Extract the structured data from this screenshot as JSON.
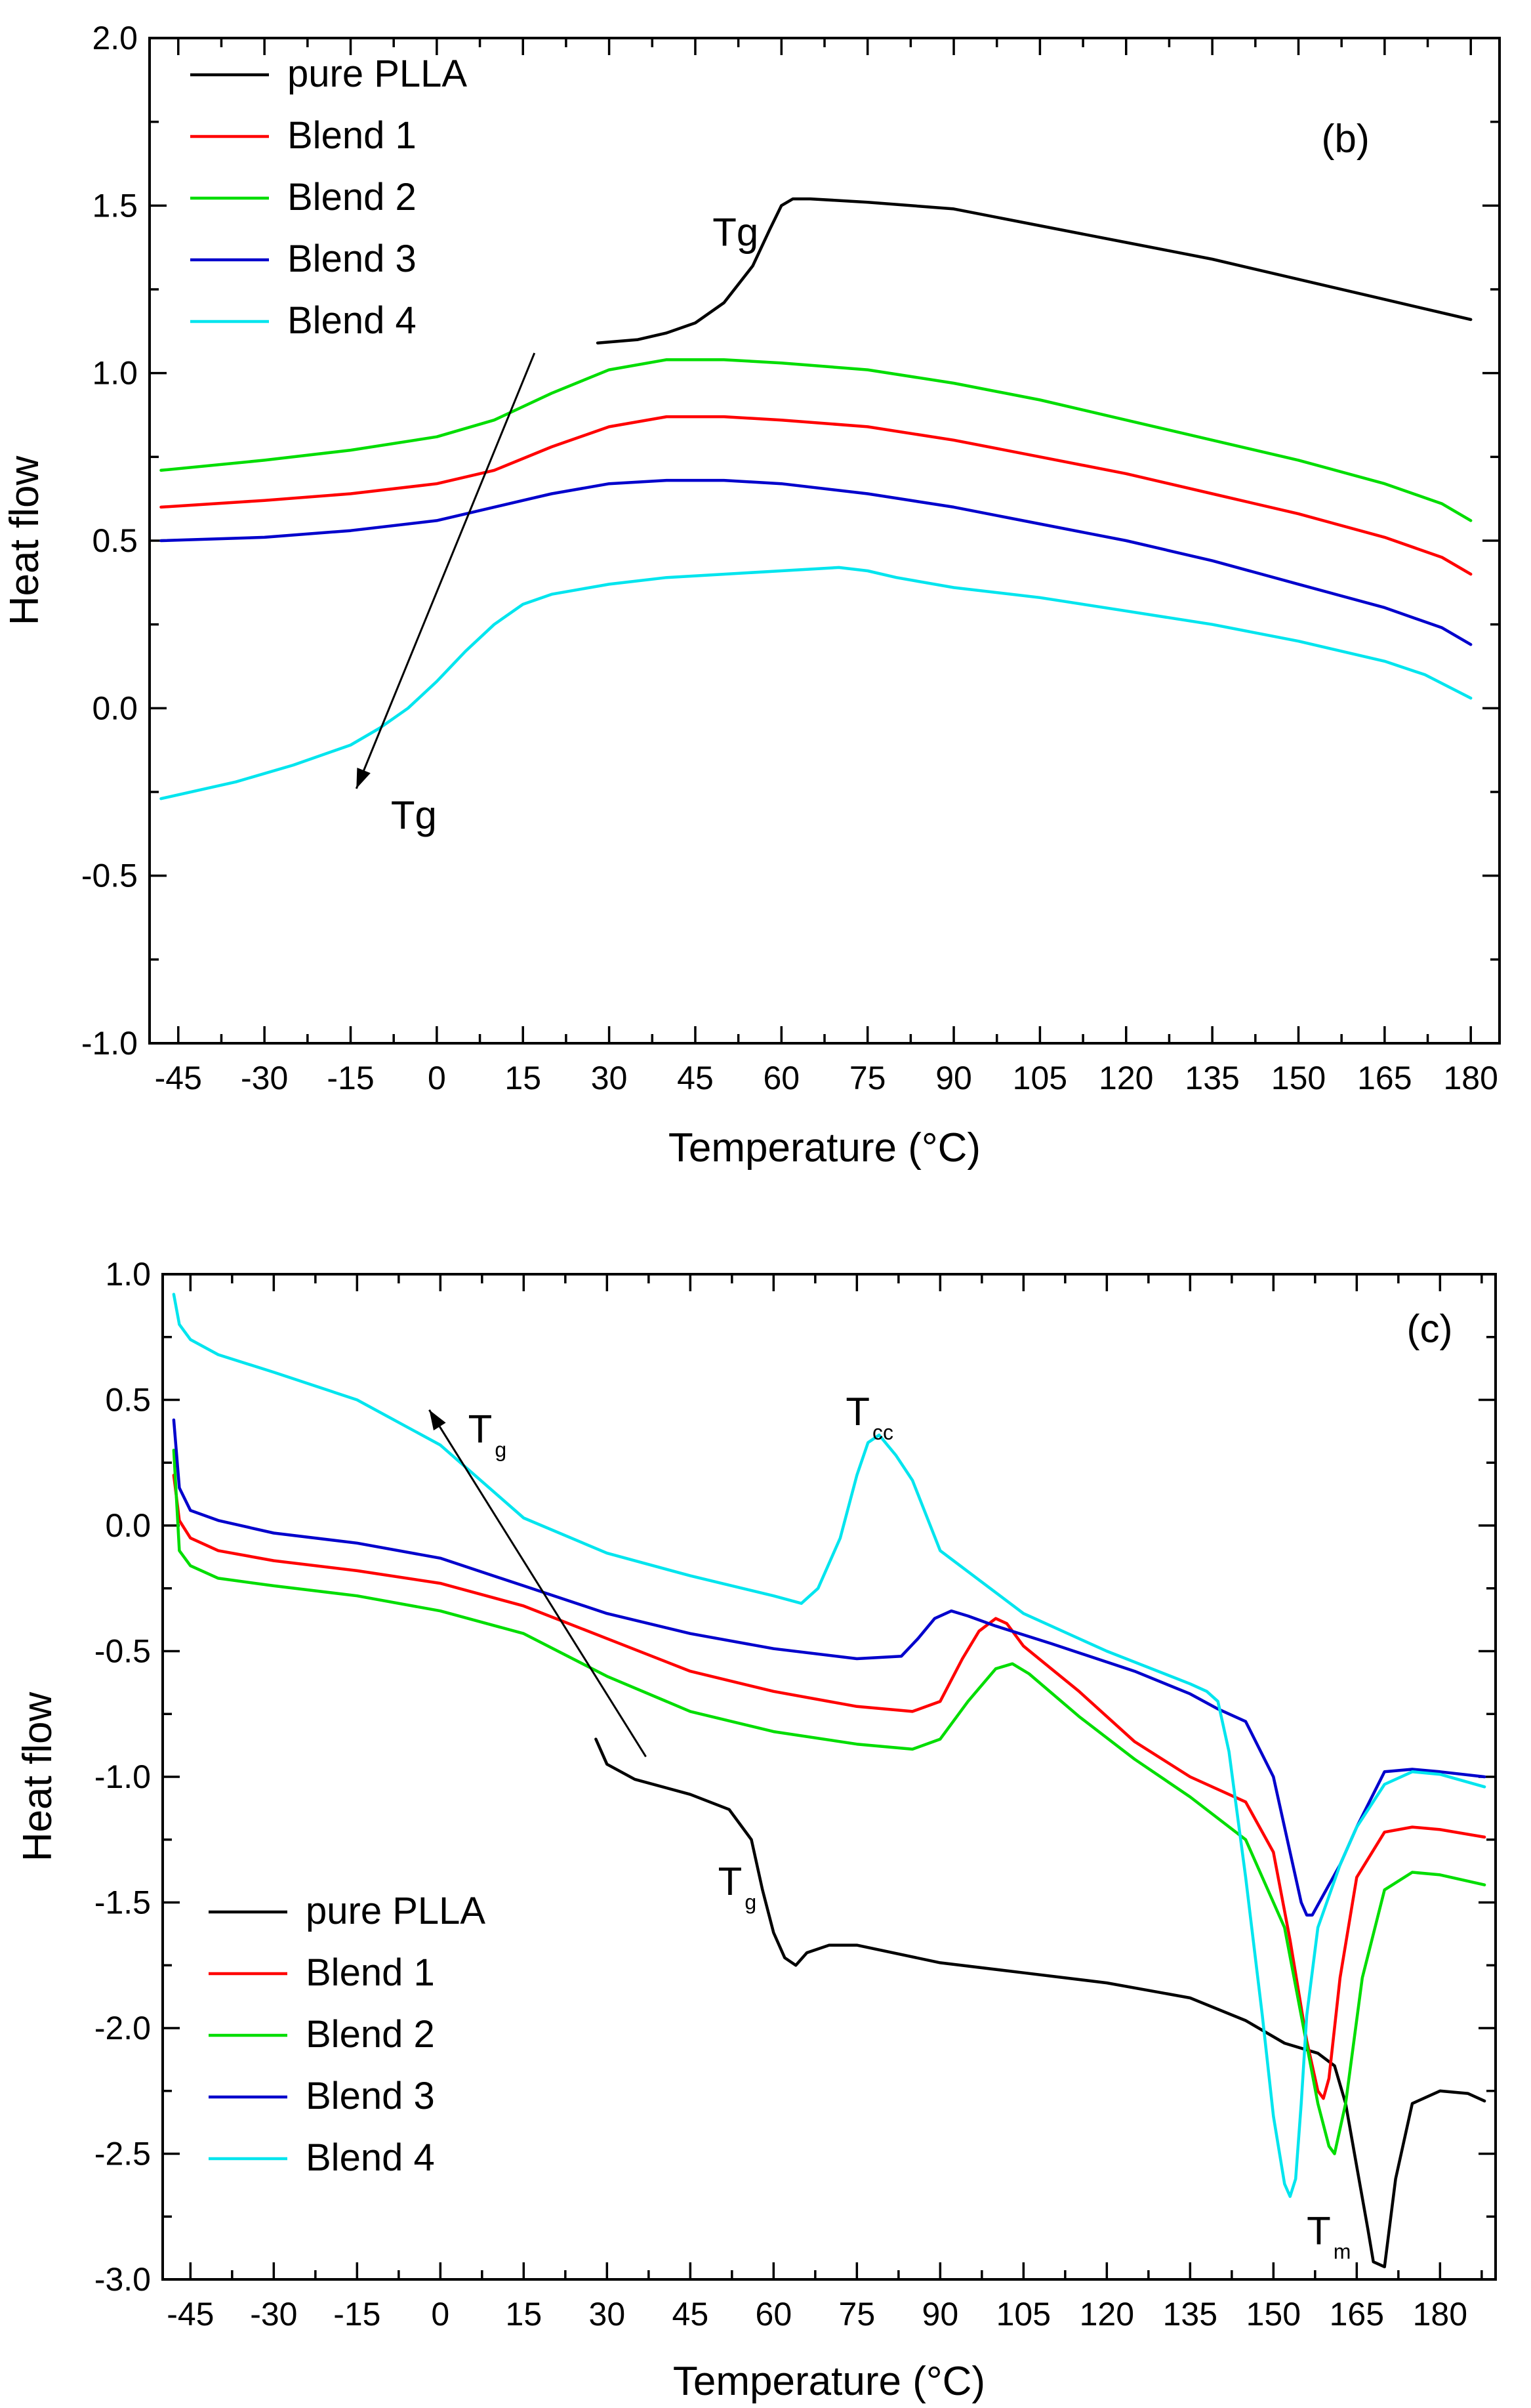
{
  "chart_data": [
    {
      "type": "line",
      "panel": "(b)",
      "xlabel": "Temperature (°C)",
      "ylabel": "Heat flow",
      "xlim": [
        -50,
        185
      ],
      "ylim": [
        -1.0,
        2.0
      ],
      "xticks": [
        -45,
        -30,
        -15,
        0,
        15,
        30,
        45,
        60,
        75,
        90,
        105,
        120,
        135,
        150,
        165,
        180
      ],
      "yticks": [
        -1.0,
        -0.5,
        0.0,
        0.5,
        1.0,
        1.5,
        2.0
      ],
      "ytick_labels": [
        "-1.0",
        "-0.5",
        "0.0",
        "0.5",
        "1.0",
        "1.5",
        "2.0"
      ],
      "legend_position": "top-left",
      "series": [
        {
          "name": "pure PLLA",
          "color": "#000000",
          "x": [
            28,
            35,
            40,
            45,
            50,
            55,
            58,
            60,
            62,
            65,
            75,
            90,
            105,
            120,
            135,
            150,
            165,
            180
          ],
          "y": [
            1.09,
            1.1,
            1.12,
            1.15,
            1.21,
            1.32,
            1.43,
            1.5,
            1.52,
            1.52,
            1.51,
            1.49,
            1.44,
            1.39,
            1.34,
            1.28,
            1.22,
            1.16
          ]
        },
        {
          "name": "Blend 1",
          "color": "#ff0000",
          "x": [
            -48,
            -30,
            -15,
            0,
            10,
            20,
            30,
            40,
            50,
            60,
            75,
            90,
            105,
            120,
            135,
            150,
            165,
            175,
            180
          ],
          "y": [
            0.6,
            0.62,
            0.64,
            0.67,
            0.71,
            0.78,
            0.84,
            0.87,
            0.87,
            0.86,
            0.84,
            0.8,
            0.75,
            0.7,
            0.64,
            0.58,
            0.51,
            0.45,
            0.4
          ]
        },
        {
          "name": "Blend 2",
          "color": "#00dd00",
          "x": [
            -48,
            -30,
            -15,
            0,
            10,
            20,
            30,
            40,
            50,
            60,
            75,
            90,
            105,
            120,
            135,
            150,
            165,
            175,
            180
          ],
          "y": [
            0.71,
            0.74,
            0.77,
            0.81,
            0.86,
            0.94,
            1.01,
            1.04,
            1.04,
            1.03,
            1.01,
            0.97,
            0.92,
            0.86,
            0.8,
            0.74,
            0.67,
            0.61,
            0.56
          ]
        },
        {
          "name": "Blend 3",
          "color": "#0000cc",
          "x": [
            -48,
            -30,
            -15,
            0,
            10,
            20,
            30,
            40,
            50,
            60,
            75,
            90,
            105,
            120,
            135,
            150,
            165,
            175,
            180
          ],
          "y": [
            0.5,
            0.51,
            0.53,
            0.56,
            0.6,
            0.64,
            0.67,
            0.68,
            0.68,
            0.67,
            0.64,
            0.6,
            0.55,
            0.5,
            0.44,
            0.37,
            0.3,
            0.24,
            0.19
          ]
        },
        {
          "name": "Blend 4",
          "color": "#00e5ee",
          "x": [
            -48,
            -35,
            -25,
            -15,
            -10,
            -5,
            0,
            5,
            10,
            15,
            20,
            30,
            40,
            50,
            60,
            70,
            75,
            80,
            90,
            105,
            120,
            135,
            150,
            165,
            172,
            180
          ],
          "y": [
            -0.27,
            -0.22,
            -0.17,
            -0.11,
            -0.06,
            0.0,
            0.08,
            0.17,
            0.25,
            0.31,
            0.34,
            0.37,
            0.39,
            0.4,
            0.41,
            0.42,
            0.41,
            0.39,
            0.36,
            0.33,
            0.29,
            0.25,
            0.2,
            0.14,
            0.1,
            0.03
          ]
        }
      ],
      "annotations": [
        {
          "label": "(b)",
          "x": 154,
          "y": 1.66
        },
        {
          "label": "Tg",
          "x": 48,
          "y": 1.38,
          "sub": ""
        },
        {
          "label": "Tg",
          "x": -8,
          "y": -0.36,
          "sub": ""
        }
      ],
      "arrow": {
        "from": [
          17,
          1.06
        ],
        "to": [
          -14,
          -0.24
        ]
      }
    },
    {
      "type": "line",
      "panel": "(c)",
      "xlabel": "Temperature (°C)",
      "ylabel": "Heat flow",
      "xlim": [
        -50,
        190
      ],
      "ylim": [
        -3.0,
        1.0
      ],
      "xticks": [
        -45,
        -30,
        -15,
        0,
        15,
        30,
        45,
        60,
        75,
        90,
        105,
        120,
        135,
        150,
        165,
        180
      ],
      "yticks": [
        -3.0,
        -2.5,
        -2.0,
        -1.5,
        -1.0,
        -0.5,
        0.0,
        0.5,
        1.0
      ],
      "ytick_labels": [
        "-3.0",
        "-2.5",
        "-2.0",
        "-1.5",
        "-1.0",
        "-0.5",
        "0.0",
        "0.5",
        "1.0"
      ],
      "legend_position": "bottom-left",
      "series": [
        {
          "name": "pure PLLA",
          "color": "#000000",
          "x": [
            28,
            30,
            35,
            45,
            52,
            56,
            58,
            60,
            62,
            64,
            66,
            70,
            75,
            90,
            105,
            120,
            135,
            145,
            152,
            158,
            161,
            163,
            165,
            167,
            168,
            170,
            172,
            175,
            180,
            185,
            188
          ],
          "y": [
            -0.85,
            -0.95,
            -1.01,
            -1.07,
            -1.13,
            -1.25,
            -1.45,
            -1.62,
            -1.72,
            -1.75,
            -1.7,
            -1.67,
            -1.67,
            -1.74,
            -1.78,
            -1.82,
            -1.88,
            -1.97,
            -2.06,
            -2.1,
            -2.15,
            -2.3,
            -2.55,
            -2.8,
            -2.93,
            -2.95,
            -2.6,
            -2.3,
            -2.25,
            -2.26,
            -2.29
          ]
        },
        {
          "name": "Blend 1",
          "color": "#ff0000",
          "x": [
            -48,
            -47,
            -45,
            -40,
            -30,
            -15,
            0,
            15,
            30,
            45,
            60,
            75,
            85,
            90,
            94,
            97,
            100,
            102,
            105,
            115,
            125,
            135,
            145,
            150,
            153,
            156,
            158,
            159,
            160,
            162,
            165,
            170,
            175,
            180,
            188
          ],
          "y": [
            0.2,
            0.02,
            -0.05,
            -0.1,
            -0.14,
            -0.18,
            -0.23,
            -0.32,
            -0.45,
            -0.58,
            -0.66,
            -0.72,
            -0.74,
            -0.7,
            -0.53,
            -0.42,
            -0.37,
            -0.39,
            -0.48,
            -0.66,
            -0.86,
            -1.0,
            -1.1,
            -1.3,
            -1.65,
            -2.05,
            -2.25,
            -2.28,
            -2.2,
            -1.8,
            -1.4,
            -1.22,
            -1.2,
            -1.21,
            -1.24
          ]
        },
        {
          "name": "Blend 2",
          "color": "#00dd00",
          "x": [
            -48,
            -47,
            -45,
            -40,
            -30,
            -15,
            0,
            15,
            30,
            45,
            60,
            75,
            85,
            90,
            95,
            100,
            103,
            106,
            115,
            125,
            135,
            145,
            152,
            155,
            158,
            160,
            161,
            163,
            166,
            170,
            175,
            180,
            188
          ],
          "y": [
            0.3,
            -0.1,
            -0.16,
            -0.21,
            -0.24,
            -0.28,
            -0.34,
            -0.43,
            -0.6,
            -0.74,
            -0.82,
            -0.87,
            -0.89,
            -0.85,
            -0.7,
            -0.57,
            -0.55,
            -0.59,
            -0.76,
            -0.93,
            -1.08,
            -1.25,
            -1.6,
            -1.95,
            -2.3,
            -2.47,
            -2.5,
            -2.3,
            -1.8,
            -1.45,
            -1.38,
            -1.39,
            -1.43
          ]
        },
        {
          "name": "Blend 3",
          "color": "#0000cc",
          "x": [
            -48,
            -47,
            -45,
            -40,
            -30,
            -15,
            0,
            15,
            30,
            45,
            60,
            75,
            83,
            86,
            89,
            92,
            95,
            100,
            110,
            125,
            135,
            140,
            145,
            150,
            153,
            155,
            156,
            157,
            159,
            162,
            165,
            170,
            175,
            180,
            188
          ],
          "y": [
            0.42,
            0.15,
            0.06,
            0.02,
            -0.03,
            -0.07,
            -0.13,
            -0.24,
            -0.35,
            -0.43,
            -0.49,
            -0.53,
            -0.52,
            -0.45,
            -0.37,
            -0.34,
            -0.36,
            -0.4,
            -0.47,
            -0.58,
            -0.67,
            -0.73,
            -0.78,
            -1.0,
            -1.3,
            -1.5,
            -1.55,
            -1.55,
            -1.47,
            -1.35,
            -1.2,
            -0.98,
            -0.97,
            -0.98,
            -1.0
          ]
        },
        {
          "name": "Blend 4",
          "color": "#00e5ee",
          "x": [
            -48,
            -47,
            -45,
            -40,
            -30,
            -15,
            0,
            15,
            30,
            45,
            60,
            65,
            68,
            72,
            75,
            77,
            79,
            82,
            85,
            90,
            105,
            120,
            135,
            138,
            140,
            142,
            145,
            148,
            150,
            152,
            153,
            154,
            155,
            156,
            158,
            162,
            165,
            170,
            175,
            180,
            188
          ],
          "y": [
            0.92,
            0.8,
            0.74,
            0.68,
            0.61,
            0.5,
            0.32,
            0.03,
            -0.11,
            -0.2,
            -0.28,
            -0.31,
            -0.25,
            -0.05,
            0.2,
            0.33,
            0.36,
            0.28,
            0.18,
            -0.1,
            -0.35,
            -0.5,
            -0.63,
            -0.66,
            -0.7,
            -0.9,
            -1.4,
            -1.95,
            -2.35,
            -2.62,
            -2.67,
            -2.6,
            -2.3,
            -1.95,
            -1.6,
            -1.35,
            -1.2,
            -1.03,
            -0.98,
            -0.99,
            -1.04
          ]
        }
      ],
      "annotations": [
        {
          "label": "(c)",
          "x": 174,
          "y": 0.73
        },
        {
          "label": "T",
          "x": 5,
          "y": 0.33,
          "sub": "g"
        },
        {
          "label": "T",
          "x": 73,
          "y": 0.4,
          "sub": "cc"
        },
        {
          "label": "T",
          "x": 50,
          "y": -1.47,
          "sub": "g"
        },
        {
          "label": "T",
          "x": 156,
          "y": -2.86,
          "sub": "m"
        }
      ],
      "arrow": {
        "from": [
          37,
          -0.92
        ],
        "to": [
          -2,
          0.46
        ]
      }
    }
  ]
}
